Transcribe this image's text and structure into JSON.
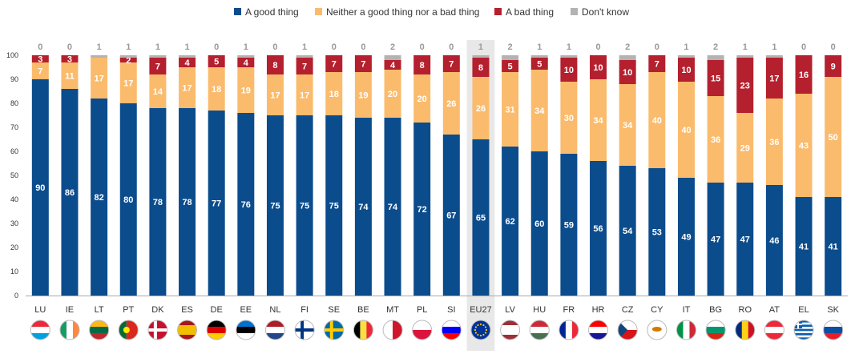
{
  "chart_data": {
    "type": "bar",
    "stacked": true,
    "categories": [
      "LU",
      "IE",
      "LT",
      "PT",
      "DK",
      "ES",
      "DE",
      "EE",
      "NL",
      "FI",
      "SE",
      "BE",
      "MT",
      "PL",
      "SI",
      "EU27",
      "LV",
      "HU",
      "FR",
      "HR",
      "CZ",
      "CY",
      "IT",
      "BG",
      "RO",
      "AT",
      "EL",
      "SK"
    ],
    "highlight_category": "EU27",
    "ylim": [
      0,
      100
    ],
    "yticks": [
      0,
      10,
      20,
      30,
      40,
      50,
      60,
      70,
      80,
      90,
      100
    ],
    "legend_position": "top",
    "series": [
      {
        "name": "A good thing",
        "color": "#0b4c8c",
        "values": [
          90,
          86,
          82,
          80,
          78,
          78,
          77,
          76,
          75,
          75,
          75,
          74,
          74,
          72,
          67,
          65,
          62,
          60,
          59,
          56,
          54,
          53,
          49,
          47,
          47,
          46,
          41,
          41
        ]
      },
      {
        "name": "Neither a good thing nor a bad thing",
        "color": "#fbbb6c",
        "values": [
          7,
          11,
          17,
          17,
          14,
          17,
          18,
          19,
          17,
          17,
          18,
          19,
          20,
          20,
          26,
          26,
          31,
          34,
          30,
          34,
          34,
          40,
          40,
          36,
          29,
          36,
          43,
          50
        ]
      },
      {
        "name": "A bad thing",
        "color": "#b5202e",
        "values": [
          3,
          3,
          0,
          2,
          7,
          4,
          5,
          4,
          8,
          7,
          7,
          7,
          4,
          8,
          7,
          8,
          5,
          5,
          10,
          10,
          10,
          7,
          10,
          15,
          23,
          17,
          16,
          9
        ],
        "labels": [
          "3",
          "3",
          "",
          "2",
          "7",
          "4",
          "5",
          "4",
          "8",
          "7",
          "7",
          "7",
          "4",
          "8",
          "7",
          "8",
          "5",
          "5",
          "10",
          "10",
          "10",
          "7",
          "10",
          "15",
          "23",
          "17",
          "16",
          "9"
        ]
      },
      {
        "name": "Don't know",
        "color": "#b3b3b3",
        "values": [
          0,
          0,
          1,
          1,
          1,
          1,
          0,
          1,
          0,
          1,
          0,
          0,
          2,
          0,
          0,
          1,
          2,
          1,
          1,
          0,
          2,
          0,
          1,
          2,
          1,
          1,
          0,
          0
        ]
      }
    ],
    "flags": [
      "LU",
      "IE",
      "LT",
      "PT",
      "DK",
      "ES",
      "DE",
      "EE",
      "NL",
      "FI",
      "SE",
      "BE",
      "MT",
      "PL",
      "SI",
      "EU27",
      "LV",
      "HU",
      "FR",
      "HR",
      "CZ",
      "CY",
      "IT",
      "BG",
      "RO",
      "AT",
      "EL",
      "SK"
    ]
  }
}
